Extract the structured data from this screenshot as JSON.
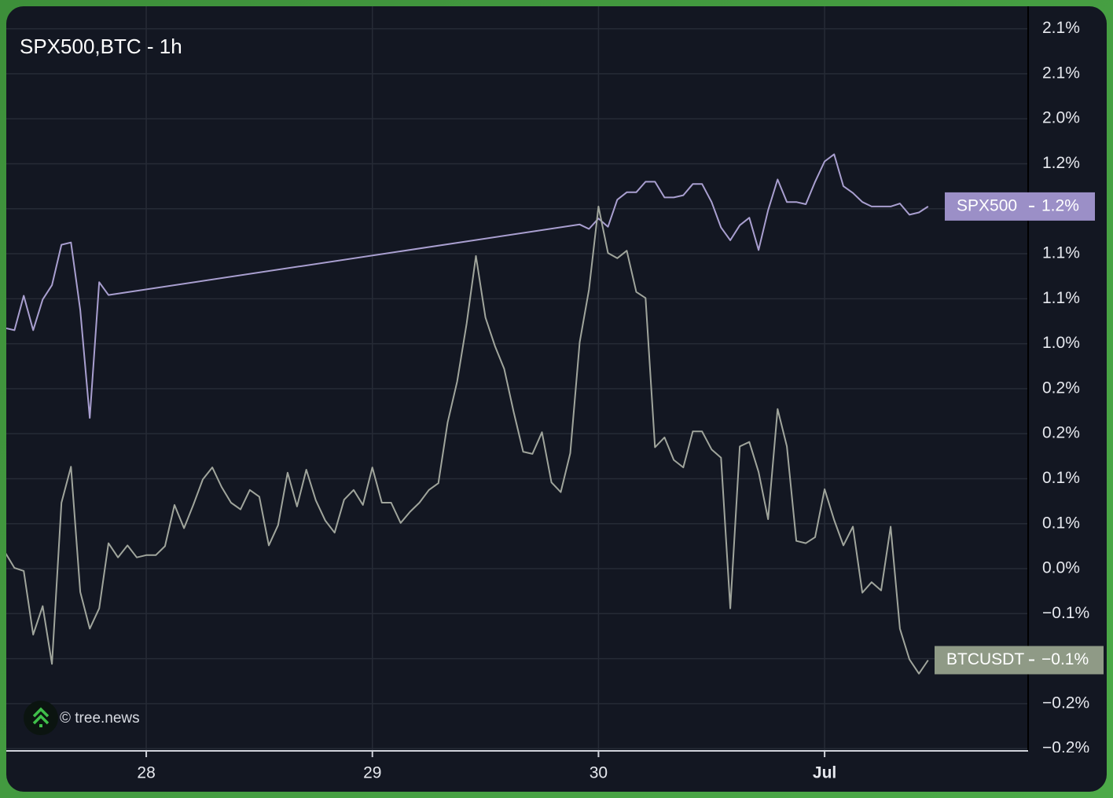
{
  "chart_data": {
    "type": "line",
    "title": "SPX500,BTC - 1h",
    "watermark": "© tree.news",
    "xlim": [
      27.381,
      31.9
    ],
    "xticks": [
      28,
      29,
      30,
      {
        "value": 31,
        "label": "Jul"
      }
    ],
    "ylim": [
      -0.243,
      2.17
    ],
    "yticks": [
      {
        "value": 2.14,
        "label": "2.1%"
      },
      {
        "value": 2.08,
        "label": "2.1%"
      },
      {
        "value": 2.02,
        "label": "2.0%"
      },
      {
        "value": 1.24,
        "label": "1.2%"
      },
      {
        "value": 1.18,
        "label": "1.2%"
      },
      {
        "value": 1.12,
        "label": "1.1%"
      },
      {
        "value": 1.06,
        "label": "1.1%"
      },
      {
        "value": 1.0,
        "label": "1.0%"
      },
      {
        "value": 0.24,
        "label": "0.2%"
      },
      {
        "value": 0.18,
        "label": "0.2%"
      },
      {
        "value": 0.12,
        "label": "0.1%"
      },
      {
        "value": 0.06,
        "label": "0.1%"
      },
      {
        "value": 0.0,
        "label": "0.0%"
      },
      {
        "value": -0.06,
        "label": "−0.1%"
      },
      {
        "value": -0.12,
        "label": "−0.1%"
      },
      {
        "value": -0.18,
        "label": "−0.2%"
      },
      {
        "value": -0.24,
        "label": "−0.2%"
      }
    ],
    "grid": true,
    "series": [
      {
        "name": "SPX500",
        "color": "#a99fd0",
        "label_color": "#9b8fc7",
        "last_label": "1.2%",
        "x": [
          27.375,
          27.417,
          27.458,
          27.5,
          27.542,
          27.583,
          27.625,
          27.667,
          27.708,
          27.75,
          27.792,
          27.833,
          29.917,
          29.958,
          30,
          30.042,
          30.083,
          30.125,
          30.167,
          30.208,
          30.25,
          30.292,
          30.333,
          30.375,
          30.417,
          30.458,
          30.5,
          30.542,
          30.583,
          30.625,
          30.667,
          30.708,
          30.75,
          30.792,
          30.833,
          30.875,
          30.917,
          30.958,
          31,
          31.042,
          31.083,
          31.125,
          31.167,
          31.208,
          31.25,
          31.292,
          31.333,
          31.375,
          31.417,
          31.458
        ],
        "values": [
          1.021,
          1.018,
          1.064,
          1.018,
          1.059,
          1.078,
          1.132,
          1.135,
          1.045,
          0.201,
          1.082,
          1.065,
          1.159,
          1.153,
          1.167,
          1.156,
          1.192,
          1.202,
          1.202,
          1.216,
          1.216,
          1.195,
          1.195,
          1.198,
          1.213,
          1.213,
          1.189,
          1.155,
          1.138,
          1.158,
          1.168,
          1.125,
          1.178,
          1.219,
          1.189,
          1.189,
          1.186,
          1.216,
          1.281,
          1.404,
          1.21,
          1.201,
          1.189,
          1.183,
          1.183,
          1.183,
          1.187,
          1.172,
          1.175,
          1.183
        ]
      },
      {
        "name": "BTCUSDT",
        "color": "#a0a59c",
        "label_color": "#8f9a86",
        "last_label": "−0.1%",
        "x": [
          27.375,
          27.417,
          27.458,
          27.5,
          27.542,
          27.583,
          27.625,
          27.667,
          27.708,
          27.75,
          27.792,
          27.833,
          27.875,
          27.917,
          27.958,
          28,
          28.042,
          28.083,
          28.125,
          28.167,
          28.208,
          28.25,
          28.292,
          28.333,
          28.375,
          28.417,
          28.458,
          28.5,
          28.542,
          28.583,
          28.625,
          28.667,
          28.708,
          28.75,
          28.792,
          28.833,
          28.875,
          28.917,
          28.958,
          29,
          29.042,
          29.083,
          29.125,
          29.167,
          29.208,
          29.25,
          29.292,
          29.333,
          29.375,
          29.417,
          29.458,
          29.5,
          29.542,
          29.583,
          29.625,
          29.667,
          29.708,
          29.75,
          29.792,
          29.833,
          29.875,
          29.917,
          29.958,
          30,
          30.042,
          30.083,
          30.125,
          30.167,
          30.208,
          30.25,
          30.292,
          30.333,
          30.375,
          30.417,
          30.458,
          30.5,
          30.542,
          30.583,
          30.625,
          30.667,
          30.708,
          30.75,
          30.792,
          30.833,
          30.875,
          30.917,
          30.958,
          31,
          31.042,
          31.083,
          31.125,
          31.167,
          31.208,
          31.25,
          31.292,
          31.333,
          31.375,
          31.417,
          31.458
        ],
        "values": [
          0.022,
          0.001,
          -0.003,
          -0.088,
          -0.05,
          -0.127,
          0.088,
          0.136,
          -0.031,
          -0.08,
          -0.053,
          0.034,
          0.015,
          0.031,
          0.015,
          0.018,
          0.018,
          0.03,
          0.085,
          0.054,
          0.085,
          0.119,
          0.135,
          0.109,
          0.088,
          0.079,
          0.105,
          0.096,
          0.031,
          0.058,
          0.128,
          0.083,
          0.132,
          0.091,
          0.064,
          0.048,
          0.092,
          0.105,
          0.085,
          0.135,
          0.088,
          0.088,
          0.061,
          0.076,
          0.088,
          0.105,
          0.114,
          0.195,
          0.36,
          1.027,
          1.117,
          1.035,
          0.96,
          0.573,
          0.209,
          0.156,
          0.153,
          0.182,
          0.115,
          0.102,
          0.154,
          1.002,
          1.072,
          1.183,
          1.121,
          1.114,
          1.124,
          1.069,
          1.061,
          0.162,
          0.175,
          0.145,
          0.135,
          0.183,
          0.183,
          0.159,
          0.148,
          -0.053,
          0.163,
          0.169,
          0.129,
          0.066,
          0.213,
          0.163,
          0.037,
          0.034,
          0.042,
          0.106,
          0.065,
          0.031,
          0.056,
          -0.032,
          -0.018,
          -0.029,
          0.056,
          -0.08,
          -0.121,
          -0.14,
          -0.122
        ]
      }
    ]
  }
}
